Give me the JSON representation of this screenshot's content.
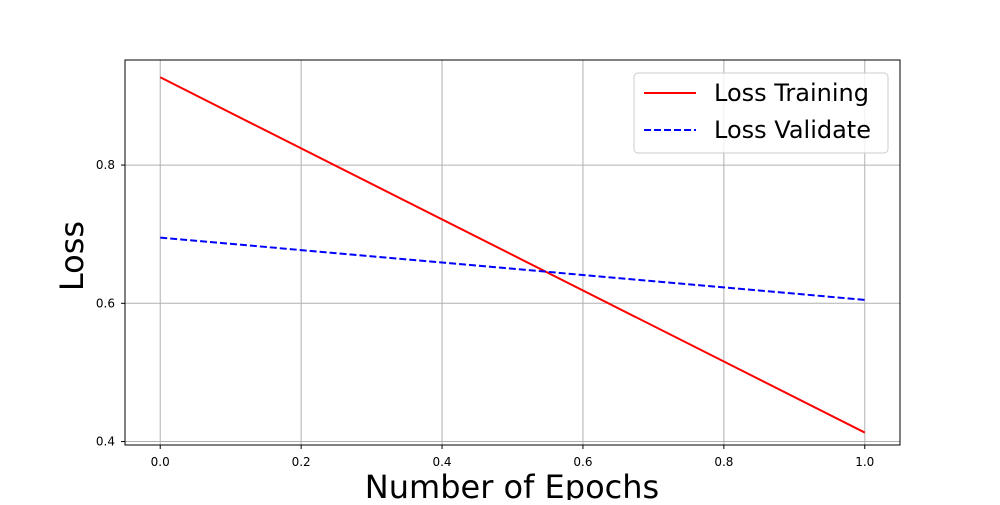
{
  "chart_data": {
    "type": "line",
    "title": "",
    "xlabel": "Number of Epochs",
    "ylabel": "Loss",
    "xlim": [
      -0.05,
      1.05
    ],
    "ylim": [
      0.395,
      0.952
    ],
    "x_ticks": [
      0.0,
      0.2,
      0.4,
      0.6,
      0.8,
      1.0
    ],
    "x_tick_labels": [
      "0.0",
      "0.2",
      "0.4",
      "0.6",
      "0.8",
      "1.0"
    ],
    "y_ticks": [
      0.4,
      0.6,
      0.8
    ],
    "y_tick_labels": [
      "0.4",
      "0.6",
      "0.8"
    ],
    "grid": true,
    "legend_position": "top-right",
    "series": [
      {
        "name": "Loss Training",
        "color": "#ff0000",
        "style": "solid",
        "x": [
          0.0,
          1.0
        ],
        "y": [
          0.927,
          0.413
        ]
      },
      {
        "name": "Loss Validate",
        "color": "#0000ff",
        "style": "dashed",
        "x": [
          0.0,
          1.0
        ],
        "y": [
          0.695,
          0.605
        ]
      }
    ]
  }
}
